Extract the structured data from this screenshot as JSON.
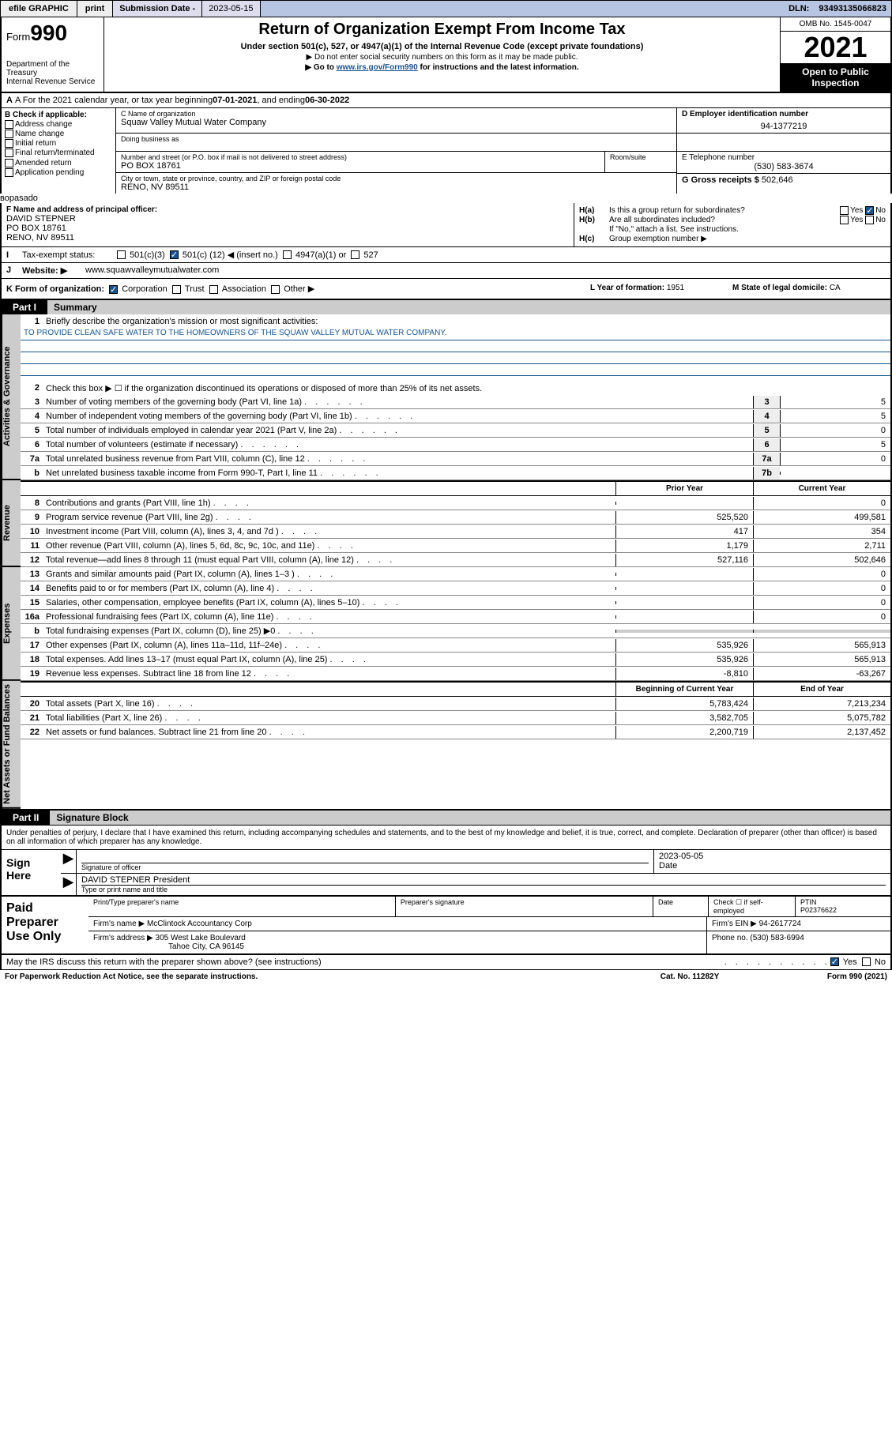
{
  "topbar": {
    "efile": "efile GRAPHIC",
    "print": "print",
    "subdate_lbl": "Submission Date - ",
    "subdate": "2023-05-15",
    "dln_lbl": "DLN: ",
    "dln": "93493135066823"
  },
  "header": {
    "form_prefix": "Form",
    "form_num": "990",
    "dept": "Department of the Treasury",
    "irs": "Internal Revenue Service",
    "title": "Return of Organization Exempt From Income Tax",
    "subtitle": "Under section 501(c), 527, or 4947(a)(1) of the Internal Revenue Code (except private foundations)",
    "note1": "▶ Do not enter social security numbers on this form as it may be made public.",
    "note2_pre": "▶ Go to ",
    "note2_link": "www.irs.gov/Form990",
    "note2_post": " for instructions and the latest information.",
    "omb": "OMB No. 1545-0047",
    "year": "2021",
    "inspect1": "Open to Public",
    "inspect2": "Inspection"
  },
  "rowA": {
    "pre": "A For the 2021 calendar year, or tax year beginning ",
    "begin": "07-01-2021",
    "mid": " , and ending ",
    "end": "06-30-2022"
  },
  "B": {
    "hd": "B Check if applicable:",
    "opts": [
      "Address change",
      "Name change",
      "Initial return",
      "Final return/terminated",
      "Amended return",
      "Application pending"
    ]
  },
  "C": {
    "name_lbl": "C Name of organization",
    "name": "Squaw Valley Mutual Water Company",
    "dba_lbl": "Doing business as",
    "dba": "",
    "street_lbl": "Number and street (or P.O. box if mail is not delivered to street address)",
    "street": "PO BOX 18761",
    "room_lbl": "Room/suite",
    "city_lbl": "City or town, state or province, country, and ZIP or foreign postal code",
    "city": "RENO, NV  89511"
  },
  "D": {
    "lbl": "D Employer identification number",
    "val": "94-1377219"
  },
  "E": {
    "lbl": "E Telephone number",
    "val": "(530) 583-3674"
  },
  "G": {
    "lbl": "G Gross receipts $ ",
    "val": "502,646"
  },
  "F": {
    "lbl": "F Name and address of principal officer:",
    "name": "DAVID STEPNER",
    "street": "PO BOX 18761",
    "city": "RENO, NV  89511"
  },
  "H": {
    "a_lbl": "H(a)",
    "a_txt": "Is this a group return for subordinates?",
    "b_lbl": "H(b)",
    "b_txt": "Are all subordinates included?",
    "b_note": "If \"No,\" attach a list. See instructions.",
    "c_lbl": "H(c)",
    "c_txt": "Group exemption number ▶",
    "yes": "Yes",
    "no": "No"
  },
  "I": {
    "lbl": "Tax-exempt status:",
    "o1": "501(c)(3)",
    "o2_pre": "501(c) ( ",
    "o2_num": "12",
    "o2_post": " ) ◀ (insert no.)",
    "o3": "4947(a)(1) or",
    "o4": "527"
  },
  "J": {
    "lbl": "Website: ▶",
    "val": "www.squawvalleymutualwater.com"
  },
  "K": {
    "lbl": "K Form of organization:",
    "opts": [
      "Corporation",
      "Trust",
      "Association",
      "Other ▶"
    ]
  },
  "L": {
    "lbl": "L Year of formation: ",
    "val": "1951"
  },
  "M": {
    "lbl": "M State of legal domicile: ",
    "val": "CA"
  },
  "part1": {
    "tag": "Part I",
    "title": "Summary"
  },
  "mission": {
    "num": "1",
    "lbl": "Briefly describe the organization's mission or most significant activities:",
    "text": "TO PROVIDE CLEAN SAFE WATER TO THE HOMEOWNERS OF THE SQUAW VALLEY MUTUAL WATER COMPANY."
  },
  "gov": {
    "l2": "Check this box ▶ ☐ if the organization discontinued its operations or disposed of more than 25% of its net assets.",
    "rows": [
      {
        "n": "3",
        "t": "Number of voting members of the governing body (Part VI, line 1a)",
        "c": "3",
        "v": "5"
      },
      {
        "n": "4",
        "t": "Number of independent voting members of the governing body (Part VI, line 1b)",
        "c": "4",
        "v": "5"
      },
      {
        "n": "5",
        "t": "Total number of individuals employed in calendar year 2021 (Part V, line 2a)",
        "c": "5",
        "v": "0"
      },
      {
        "n": "6",
        "t": "Total number of volunteers (estimate if necessary)",
        "c": "6",
        "v": "5"
      },
      {
        "n": "7a",
        "t": "Total unrelated business revenue from Part VIII, column (C), line 12",
        "c": "7a",
        "v": "0"
      },
      {
        "n": "b",
        "t": "Net unrelated business taxable income from Form 990-T, Part I, line 11",
        "c": "7b",
        "v": ""
      }
    ]
  },
  "colheads": {
    "prior": "Prior Year",
    "current": "Current Year",
    "beg": "Beginning of Current Year",
    "end": "End of Year"
  },
  "revenue": [
    {
      "n": "8",
      "t": "Contributions and grants (Part VIII, line 1h)",
      "p": "",
      "c": "0"
    },
    {
      "n": "9",
      "t": "Program service revenue (Part VIII, line 2g)",
      "p": "525,520",
      "c": "499,581"
    },
    {
      "n": "10",
      "t": "Investment income (Part VIII, column (A), lines 3, 4, and 7d )",
      "p": "417",
      "c": "354"
    },
    {
      "n": "11",
      "t": "Other revenue (Part VIII, column (A), lines 5, 6d, 8c, 9c, 10c, and 11e)",
      "p": "1,179",
      "c": "2,711"
    },
    {
      "n": "12",
      "t": "Total revenue—add lines 8 through 11 (must equal Part VIII, column (A), line 12)",
      "p": "527,116",
      "c": "502,646"
    }
  ],
  "expenses": [
    {
      "n": "13",
      "t": "Grants and similar amounts paid (Part IX, column (A), lines 1–3 )",
      "p": "",
      "c": "0"
    },
    {
      "n": "14",
      "t": "Benefits paid to or for members (Part IX, column (A), line 4)",
      "p": "",
      "c": "0"
    },
    {
      "n": "15",
      "t": "Salaries, other compensation, employee benefits (Part IX, column (A), lines 5–10)",
      "p": "",
      "c": "0"
    },
    {
      "n": "16a",
      "t": "Professional fundraising fees (Part IX, column (A), line 11e)",
      "p": "",
      "c": "0"
    },
    {
      "n": "b",
      "t": "Total fundraising expenses (Part IX, column (D), line 25) ▶0",
      "p": "shade",
      "c": "shade"
    },
    {
      "n": "17",
      "t": "Other expenses (Part IX, column (A), lines 11a–11d, 11f–24e)",
      "p": "535,926",
      "c": "565,913"
    },
    {
      "n": "18",
      "t": "Total expenses. Add lines 13–17 (must equal Part IX, column (A), line 25)",
      "p": "535,926",
      "c": "565,913"
    },
    {
      "n": "19",
      "t": "Revenue less expenses. Subtract line 18 from line 12",
      "p": "-8,810",
      "c": "-63,267"
    }
  ],
  "netassets": [
    {
      "n": "20",
      "t": "Total assets (Part X, line 16)",
      "p": "5,783,424",
      "c": "7,213,234"
    },
    {
      "n": "21",
      "t": "Total liabilities (Part X, line 26)",
      "p": "3,582,705",
      "c": "5,075,782"
    },
    {
      "n": "22",
      "t": "Net assets or fund balances. Subtract line 21 from line 20",
      "p": "2,200,719",
      "c": "2,137,452"
    }
  ],
  "sidelabels": {
    "gov": "Activities & Governance",
    "rev": "Revenue",
    "exp": "Expenses",
    "net": "Net Assets or Fund Balances"
  },
  "part2": {
    "tag": "Part II",
    "title": "Signature Block"
  },
  "sig": {
    "decl": "Under penalties of perjury, I declare that I have examined this return, including accompanying schedules and statements, and to the best of my knowledge and belief, it is true, correct, and complete. Declaration of preparer (other than officer) is based on all information of which preparer has any knowledge.",
    "sign_here": "Sign Here",
    "sig_lbl": "Signature of officer",
    "date_lbl": "Date",
    "date": "2023-05-05",
    "name": "DAVID STEPNER  President",
    "name_lbl": "Type or print name and title"
  },
  "prep": {
    "title": "Paid Preparer Use Only",
    "h1": "Print/Type preparer's name",
    "h2": "Preparer's signature",
    "h3": "Date",
    "h4_pre": "Check ☐ if self-employed",
    "h5": "PTIN",
    "ptin": "P02376622",
    "firm_lbl": "Firm's name    ▶ ",
    "firm": "McClintock Accountancy Corp",
    "ein_lbl": "Firm's EIN ▶ ",
    "ein": "94-2617724",
    "addr_lbl": "Firm's address ▶ ",
    "addr1": "305 West Lake Boulevard",
    "addr2": "Tahoe City, CA  96145",
    "phone_lbl": "Phone no. ",
    "phone": "(530) 583-6994"
  },
  "footer": {
    "discuss": "May the IRS discuss this return with the preparer shown above? (see instructions)",
    "yes": "Yes",
    "no": "No",
    "paperwork": "For Paperwork Reduction Act Notice, see the separate instructions.",
    "cat": "Cat. No. 11282Y",
    "form": "Form 990 (2021)"
  }
}
